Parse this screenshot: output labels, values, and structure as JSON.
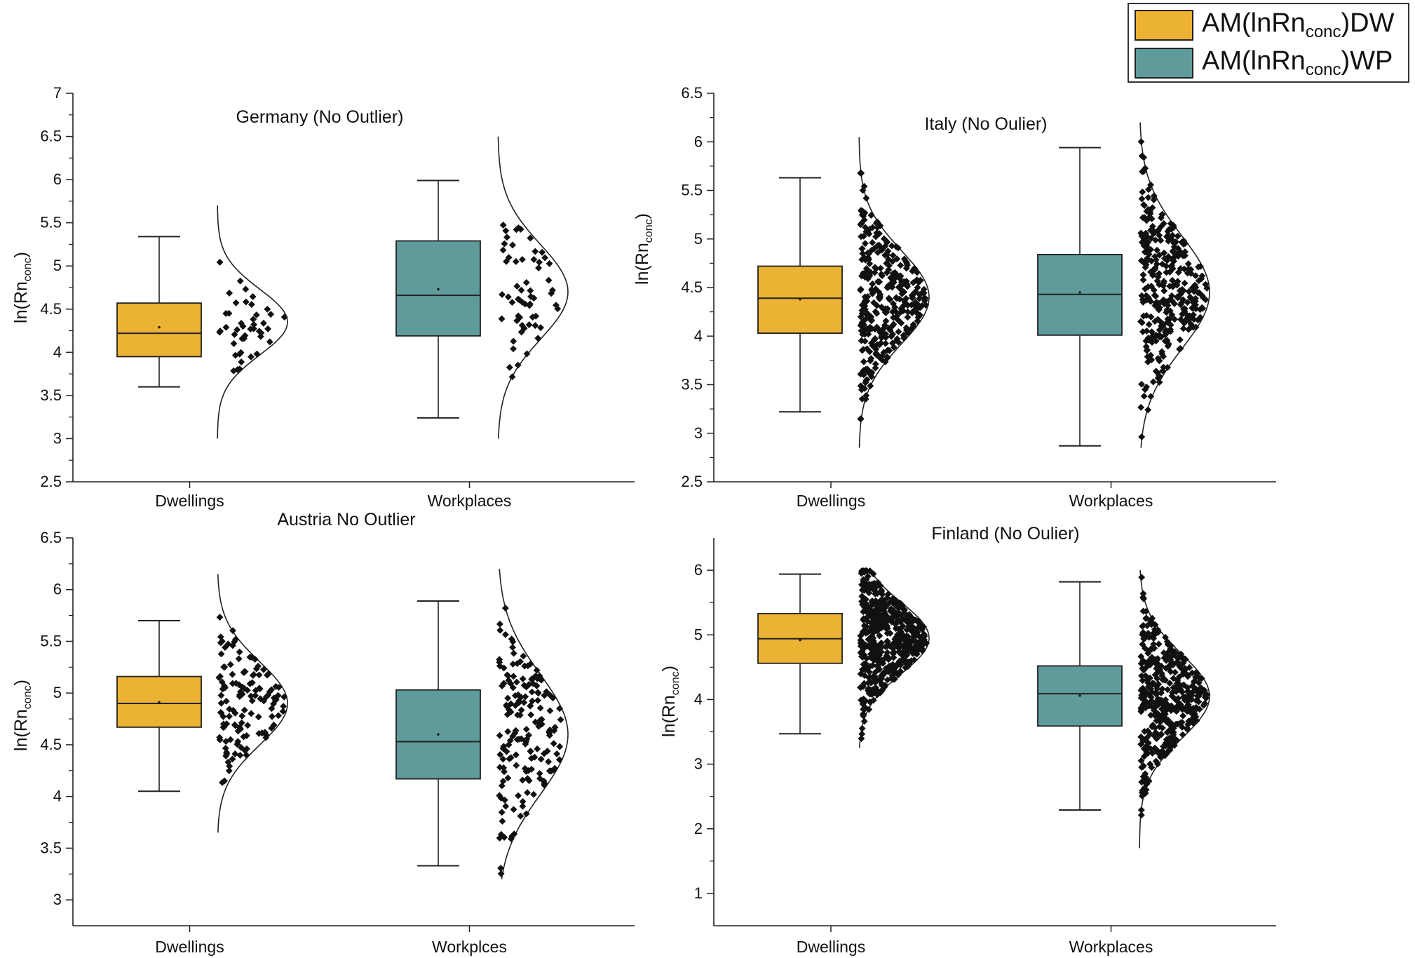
{
  "colors": {
    "dwellings": "#ECB233",
    "workplaces": "#5F9B9A",
    "points": "#111111",
    "line": "#222222"
  },
  "legend": [
    {
      "pre": "AM(lnRn",
      "sub": "conc",
      "post": ")DW",
      "color": "#ECB233"
    },
    {
      "pre": "AM(lnRn",
      "sub": "conc",
      "post": ")WP",
      "color": "#5F9B9A"
    }
  ],
  "chart_data": [
    {
      "type": "box",
      "title": "Germany (No Outlier)",
      "ylabel": {
        "main": "ln(Rn",
        "sub": "conc",
        "end": ")"
      },
      "ylim": [
        2.5,
        7
      ],
      "yticks": [
        2.5,
        3,
        3.5,
        4,
        4.5,
        5,
        5.5,
        6,
        6.5,
        7
      ],
      "categories": [
        "Dwellings",
        "Workplaces"
      ],
      "boxes": [
        {
          "category": "Dwellings",
          "whisker_low": 3.6,
          "q1": 3.95,
          "median": 4.22,
          "mean": 4.29,
          "q3": 4.57,
          "whisker_high": 5.34,
          "n": 45,
          "dist_mean": 4.35,
          "dist_sd": 0.38,
          "dist_range": [
            3.0,
            5.7
          ]
        },
        {
          "category": "Workplaces",
          "whisker_low": 3.24,
          "q1": 4.19,
          "median": 4.66,
          "mean": 4.73,
          "q3": 5.29,
          "whisker_high": 5.99,
          "n": 60,
          "dist_mean": 4.7,
          "dist_sd": 0.55,
          "dist_range": [
            3.0,
            6.5
          ]
        }
      ]
    },
    {
      "type": "box",
      "title": "Italy (No Oulier)",
      "ylabel": {
        "main": "ln(Rn",
        "sub": "conc",
        "end": ")"
      },
      "ylim": [
        2.5,
        6.5
      ],
      "yticks": [
        2.5,
        3,
        3.5,
        4,
        4.5,
        5,
        5.5,
        6,
        6.5
      ],
      "categories": [
        "Dwellings",
        "Workplaces"
      ],
      "boxes": [
        {
          "category": "Dwellings",
          "whisker_low": 3.22,
          "q1": 4.03,
          "median": 4.39,
          "mean": 4.38,
          "q3": 4.72,
          "whisker_high": 5.63,
          "n": 340,
          "dist_mean": 4.4,
          "dist_sd": 0.48,
          "dist_range": [
            2.85,
            6.05
          ]
        },
        {
          "category": "Workplaces",
          "whisker_low": 2.87,
          "q1": 4.01,
          "median": 4.43,
          "mean": 4.45,
          "q3": 4.84,
          "whisker_high": 5.94,
          "n": 330,
          "dist_mean": 4.45,
          "dist_sd": 0.58,
          "dist_range": [
            2.85,
            6.2
          ]
        }
      ]
    },
    {
      "type": "box",
      "title": "Austria No Outlier",
      "ylabel": {
        "main": "ln(Rn",
        "sub": "conc",
        "end": ")"
      },
      "ylim": [
        2.75,
        6.5
      ],
      "yticks": [
        3,
        3.5,
        4,
        4.5,
        5,
        5.5,
        6,
        6.5
      ],
      "categories": [
        "Dwellings",
        "Workplces"
      ],
      "boxes": [
        {
          "category": "Dwellings",
          "whisker_low": 4.05,
          "q1": 4.67,
          "median": 4.9,
          "mean": 4.91,
          "q3": 5.16,
          "whisker_high": 5.7,
          "n": 130,
          "dist_mean": 4.9,
          "dist_sd": 0.4,
          "dist_range": [
            3.65,
            6.15
          ]
        },
        {
          "category": "Workplces",
          "whisker_low": 3.33,
          "q1": 4.17,
          "median": 4.53,
          "mean": 4.6,
          "q3": 5.03,
          "whisker_high": 5.89,
          "n": 170,
          "dist_mean": 4.6,
          "dist_sd": 0.58,
          "dist_range": [
            3.2,
            6.2
          ]
        }
      ]
    },
    {
      "type": "box",
      "title": "Finland (No Oulier)",
      "ylabel": {
        "main": "ln(Rn",
        "sub": "conc",
        "end": ")"
      },
      "ylim": [
        0.5,
        6.5
      ],
      "yticks": [
        1,
        2,
        3,
        4,
        5,
        6
      ],
      "categories": [
        "Dwellings",
        "Workplaces"
      ],
      "boxes": [
        {
          "category": "Dwellings",
          "whisker_low": 3.47,
          "q1": 4.56,
          "median": 4.94,
          "mean": 4.92,
          "q3": 5.33,
          "whisker_high": 5.94,
          "n": 500,
          "dist_mean": 4.95,
          "dist_sd": 0.55,
          "dist_range": [
            3.25,
            5.95
          ]
        },
        {
          "category": "Workplaces",
          "whisker_low": 2.29,
          "q1": 3.59,
          "median": 4.09,
          "mean": 4.06,
          "q3": 4.52,
          "whisker_high": 5.82,
          "n": 420,
          "dist_mean": 4.05,
          "dist_sd": 0.65,
          "dist_range": [
            1.7,
            6.0
          ]
        }
      ]
    }
  ]
}
